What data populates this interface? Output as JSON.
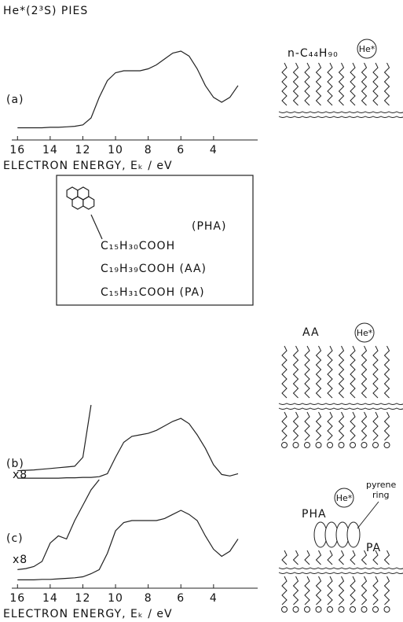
{
  "chart_data": [
    {
      "type": "line",
      "title": "He*(2³S) PIES",
      "label": "(a)",
      "x": [
        16,
        15.5,
        15,
        14.5,
        14,
        13.5,
        13,
        12.5,
        12,
        11.5,
        11,
        10.5,
        10,
        9.5,
        9,
        8.5,
        8,
        7.5,
        7,
        6.5,
        6,
        5.5,
        5,
        4.5,
        4,
        3.5,
        3,
        2.5
      ],
      "xlim": [
        16.35,
        1.3
      ],
      "xticks": [
        16,
        14,
        12,
        10,
        8,
        6,
        4
      ],
      "xlabel": "ELECTRON ENERGY, Eₖ / eV",
      "ylim": [
        0,
        1
      ],
      "series": [
        {
          "color": "#222",
          "values": [
            0.02,
            0.02,
            0.02,
            0.02,
            0.025,
            0.025,
            0.03,
            0.035,
            0.05,
            0.12,
            0.33,
            0.5,
            0.58,
            0.6,
            0.6,
            0.6,
            0.62,
            0.66,
            0.72,
            0.78,
            0.8,
            0.75,
            0.62,
            0.45,
            0.33,
            0.28,
            0.33,
            0.45
          ]
        }
      ]
    },
    {
      "type": "line",
      "label": "(b)",
      "annotations": [
        "x8"
      ],
      "x": [
        16,
        15.5,
        15,
        14.5,
        14,
        13.5,
        13,
        12.5,
        12,
        11.5,
        11,
        10.5,
        10,
        9.5,
        9,
        8.5,
        8,
        7.5,
        7,
        6.5,
        6,
        5.5,
        5,
        4.5,
        4,
        3.5,
        3,
        2.5
      ],
      "xlim": [
        16.35,
        1.3
      ],
      "ylim": [
        0,
        1
      ],
      "series": [
        {
          "color": "#222",
          "values": [
            0.02,
            0.02,
            0.02,
            0.02,
            0.02,
            0.02,
            0.025,
            0.025,
            0.03,
            0.03,
            0.04,
            0.08,
            0.3,
            0.5,
            0.58,
            0.6,
            0.62,
            0.66,
            0.72,
            0.78,
            0.82,
            0.75,
            0.6,
            0.42,
            0.2,
            0.07,
            0.05,
            0.08
          ]
        },
        {
          "color": "#222",
          "values": [
            0.12,
            0.125,
            0.13,
            0.14,
            0.15,
            0.16,
            0.17,
            0.18,
            0.3,
            1.0,
            null,
            null,
            null,
            null,
            null,
            null,
            null,
            null,
            null,
            null,
            null,
            null,
            null,
            null,
            null,
            null,
            null,
            null
          ]
        }
      ]
    },
    {
      "type": "line",
      "label": "(c)",
      "annotations": [
        "x8"
      ],
      "x": [
        16,
        15.5,
        15,
        14.5,
        14,
        13.5,
        13,
        12.5,
        12,
        11.5,
        11,
        10.5,
        10,
        9.5,
        9,
        8.5,
        8,
        7.5,
        7,
        6.5,
        6,
        5.5,
        5,
        4.5,
        4,
        3.5,
        3,
        2.5
      ],
      "xlim": [
        16.35,
        1.3
      ],
      "xticks": [
        16,
        14,
        12,
        10,
        8,
        6,
        4
      ],
      "xlabel": "ELECTRON ENERGY, Eₖ / eV",
      "ylim": [
        0,
        1
      ],
      "series": [
        {
          "color": "#222",
          "values": [
            0.02,
            0.02,
            0.02,
            0.025,
            0.025,
            0.03,
            0.035,
            0.04,
            0.05,
            0.08,
            0.12,
            0.28,
            0.5,
            0.58,
            0.6,
            0.6,
            0.6,
            0.6,
            0.62,
            0.66,
            0.7,
            0.66,
            0.6,
            0.45,
            0.32,
            0.25,
            0.3,
            0.42
          ]
        },
        {
          "color": "#222",
          "values": [
            0.12,
            0.13,
            0.15,
            0.2,
            0.38,
            0.45,
            0.42,
            0.6,
            0.75,
            0.9,
            1.0,
            null,
            null,
            null,
            null,
            null,
            null,
            null,
            null,
            null,
            null,
            null,
            null,
            null,
            null,
            null,
            null,
            null
          ]
        }
      ]
    }
  ],
  "inset": {
    "pha": "(PHA)",
    "lines": [
      "C₁₅H₃₀COOH",
      "C₁₉H₃₉COOH (AA)",
      "C₁₅H₃₁COOH (PA)"
    ]
  },
  "schematics": [
    {
      "molecule": "n-C₄₄H₉₀",
      "probe": "He*"
    },
    {
      "molecule": "AA",
      "probe": "He*"
    },
    {
      "molecule": "PHA",
      "probe": "He*",
      "ring": [
        "pyrene",
        "ring"
      ],
      "other": "PA"
    }
  ]
}
